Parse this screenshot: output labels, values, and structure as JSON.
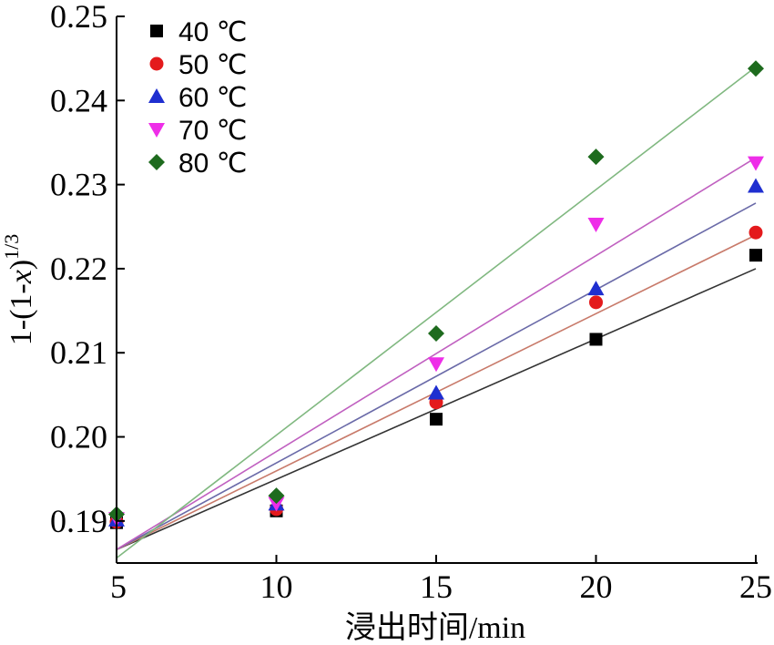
{
  "chart_data": {
    "type": "scatter",
    "xlabel": "浸出时间/min",
    "ylabel_main": "1-(1-",
    "ylabel_var": "x",
    "ylabel_close": ")",
    "ylabel_sup": "1/3",
    "xlim": [
      5,
      25
    ],
    "ylim": [
      0.185,
      0.25
    ],
    "xticks": [
      5,
      10,
      15,
      20,
      25
    ],
    "yticks": [
      0.19,
      0.2,
      0.21,
      0.22,
      0.23,
      0.24,
      0.25
    ],
    "ytick_labels": [
      "0.19",
      "0.20",
      "0.21",
      "0.22",
      "0.23",
      "0.24",
      "0.25"
    ],
    "grid": false,
    "legend_position": "top-left",
    "series": [
      {
        "name": "40 ℃",
        "marker": "square",
        "color": "#000000",
        "line_color": "#333333",
        "x": [
          5,
          10,
          15,
          20,
          25
        ],
        "y": [
          0.1898,
          0.1912,
          0.2021,
          0.2116,
          0.2216
        ],
        "fit": [
          0.1866,
          0.22
        ]
      },
      {
        "name": "50 ℃",
        "marker": "circle",
        "color": "#e41a1c",
        "line_color": "#c87a6a",
        "x": [
          5,
          10,
          15,
          20,
          25
        ],
        "y": [
          0.1899,
          0.1914,
          0.2041,
          0.216,
          0.2243
        ],
        "fit": [
          0.1866,
          0.224
        ]
      },
      {
        "name": "60 ℃",
        "marker": "triangle-up",
        "color": "#1f2fd0",
        "line_color": "#6a6aa8",
        "x": [
          5,
          10,
          15,
          20,
          25
        ],
        "y": [
          0.1901,
          0.192,
          0.2052,
          0.2176,
          0.2298
        ],
        "fit": [
          0.1866,
          0.2278
        ]
      },
      {
        "name": "70 ℃",
        "marker": "triangle-down",
        "color": "#ee2ee8",
        "line_color": "#c060c0",
        "x": [
          5,
          10,
          15,
          20,
          25
        ],
        "y": [
          0.1903,
          0.1921,
          0.2087,
          0.2253,
          0.2326
        ],
        "fit": [
          0.1866,
          0.2332
        ]
      },
      {
        "name": "80 ℃",
        "marker": "diamond",
        "color": "#1e6b1e",
        "line_color": "#80b880",
        "x": [
          5,
          10,
          15,
          20,
          25
        ],
        "y": [
          0.1908,
          0.193,
          0.2123,
          0.2333,
          0.2438
        ],
        "fit": [
          0.1856,
          0.244
        ]
      }
    ]
  }
}
